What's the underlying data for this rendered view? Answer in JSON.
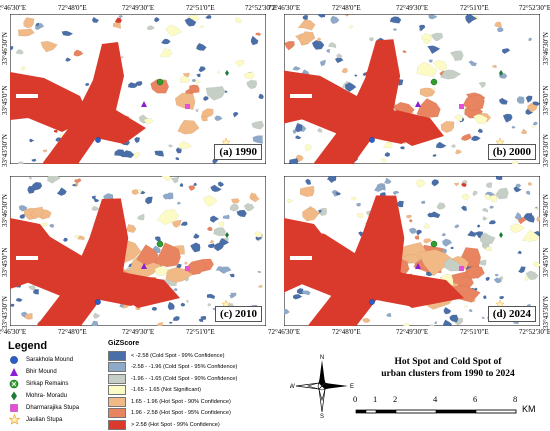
{
  "panels": [
    {
      "label": "(a) 1990",
      "top_coords": [
        "72°46'30\"E",
        "72°48'0\"E",
        "72°49'30\"E",
        "72°51'0\"E",
        "72°52'30\"E"
      ],
      "left_coords": [
        "33°46'30\"N",
        "33°45'0\"N",
        "33°43'30\"N"
      ]
    },
    {
      "label": "(b) 2000",
      "top_coords": [
        "72°46'30\"E",
        "72°48'0\"E",
        "72°49'30\"E",
        "72°51'0\"E",
        "72°52'30\"E"
      ],
      "right_coords": [
        "33°46'30\"N",
        "33°45'0\"N",
        "33°43'30\"N"
      ]
    },
    {
      "label": "(c) 2010",
      "bottom_coords": [
        "72°46'30\"E",
        "72°48'0\"E",
        "72°49'30\"E",
        "72°51'0\"E"
      ],
      "left_coords": [
        "33°46'30\"N",
        "33°45'0\"N",
        "33°43'30\"N"
      ]
    },
    {
      "label": "(d) 2024",
      "bottom_coords": [
        "72°46'30\"E",
        "72°48'0\"E",
        "72°49'30\"E",
        "72°51'0\"E",
        "72°52'30\"E"
      ],
      "right_coords": [
        "33°46'30\"N",
        "33°45'0\"N",
        "33°43'30\"N"
      ]
    }
  ],
  "legend": {
    "title": "Legend",
    "items": [
      {
        "label": "Sarakhola Mound",
        "symbol": "circle",
        "color": "#2a5fc9"
      },
      {
        "label": "Bhir Mound",
        "symbol": "triangle",
        "color": "#8b1fd6"
      },
      {
        "label": "Sirkap Remains",
        "symbol": "circle-x",
        "color": "#2f9e2f"
      },
      {
        "label": "Mohra- Moradu",
        "symbol": "diamond",
        "color": "#1f7a3a"
      },
      {
        "label": "Dharmarajika Stupa",
        "symbol": "square",
        "color": "#e64fd7"
      },
      {
        "label": "Jaulian Stupa",
        "symbol": "star",
        "color": "#f2a93b"
      }
    ]
  },
  "gizscore": {
    "title": "GiZScore",
    "classes": [
      {
        "label": "< -2.58 (Cold Spot - 99% Confidence)",
        "color": "#4a6fa8"
      },
      {
        "label": "-2.58 - -1.96 (Cold Spot - 95% Confidence)",
        "color": "#8fa9c9"
      },
      {
        "label": "-1.96 - -1.65 (Cold Spot - 90% Confidence)",
        "color": "#c6cfc6"
      },
      {
        "label": "-1.65 - 1.65 (Not Significant)",
        "color": "#fdfbc5"
      },
      {
        "label": "1.65 - 1.96 (Hot Spot - 90% Confidence)",
        "color": "#f1b986"
      },
      {
        "label": "1.96 - 2.58 (Hot Spot - 95% Confidence)",
        "color": "#e8845f"
      },
      {
        "label": "> 2.58 (Hot Spot - 99% Confidence)",
        "color": "#d93a2b"
      }
    ]
  },
  "map_title": [
    "Hot Spot and Cold Spot of",
    "urban clusters from 1990 to 2024"
  ],
  "north_arrow": {
    "n": "N",
    "e": "E",
    "s": "S",
    "w": "W"
  },
  "scale_bar": {
    "ticks": [
      "0",
      "1",
      "2",
      "4",
      "6",
      "8"
    ],
    "unit": "KM"
  }
}
